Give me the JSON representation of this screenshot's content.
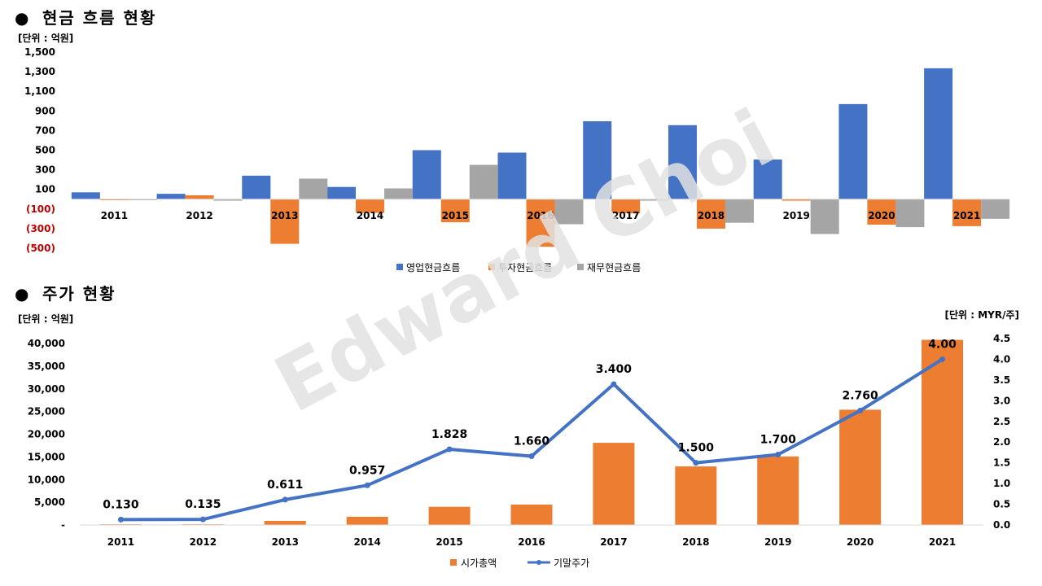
{
  "watermark": "Edward Choi",
  "colors": {
    "blue": "#4472C4",
    "orange": "#ED7D31",
    "gray": "#A5A5A5",
    "negative": "#C00000",
    "axis": "#D9D9D9",
    "watermark": "#E2E2E2"
  },
  "sections": {
    "cashflow": {
      "bullet": "●",
      "title": "현금 흐름 현황",
      "unit": "[단위 : 억원]"
    },
    "stock": {
      "bullet": "●",
      "title": "주가 현황",
      "unit_left": "[단위 : 억원]",
      "unit_right": "[단위 : MYR/주]"
    }
  },
  "chart_data": [
    {
      "type": "bar",
      "categories": [
        "2011",
        "2012",
        "2013",
        "2014",
        "2015",
        "2016",
        "2017",
        "2018",
        "2019",
        "2020",
        "2021"
      ],
      "ylim": [
        -500,
        1500
      ],
      "y_ticks": [
        1500,
        1300,
        1100,
        900,
        700,
        500,
        300,
        100,
        -100,
        -300,
        -500
      ],
      "y_tick_labels": [
        "1,500",
        "1,300",
        "1,100",
        "900",
        "700",
        "500",
        "300",
        "100",
        "(100)",
        "(300)",
        "(500)"
      ],
      "legend_position": "bottom",
      "grid": false,
      "series": [
        {
          "name": "영업현금흐름",
          "color": "#4472C4",
          "values": [
            70,
            55,
            240,
            125,
            500,
            475,
            795,
            755,
            405,
            970,
            1335
          ]
        },
        {
          "name": "투자현금흐름",
          "color": "#ED7D31",
          "values": [
            -10,
            40,
            -455,
            -140,
            -235,
            -485,
            -145,
            -300,
            -15,
            -260,
            -275
          ]
        },
        {
          "name": "재무현금흐름",
          "color": "#A5A5A5",
          "values": [
            -10,
            -15,
            210,
            110,
            350,
            -255,
            -15,
            -240,
            -355,
            -285,
            -200
          ]
        }
      ]
    },
    {
      "type": "bar+line",
      "categories": [
        "2011",
        "2012",
        "2013",
        "2014",
        "2015",
        "2016",
        "2017",
        "2018",
        "2019",
        "2020",
        "2021"
      ],
      "ylim_left": [
        0,
        40000
      ],
      "y_ticks_left": [
        40000,
        35000,
        30000,
        25000,
        20000,
        15000,
        10000,
        5000,
        0
      ],
      "y_tick_labels_left": [
        "40,000",
        "35,000",
        "30,000",
        "25,000",
        "20,000",
        "15,000",
        "10,000",
        "5,000",
        "-"
      ],
      "ylim_right": [
        0,
        4.5
      ],
      "y_ticks_right": [
        4.5,
        4.0,
        3.5,
        3.0,
        2.5,
        2.0,
        1.5,
        1.0,
        0.5,
        0.0
      ],
      "y_tick_labels_right": [
        "4.5",
        "4.0",
        "3.5",
        "3.0",
        "2.5",
        "2.0",
        "1.5",
        "1.0",
        "0.5",
        "0.0"
      ],
      "legend_position": "bottom",
      "grid": false,
      "bars": {
        "name": "시가총액",
        "color": "#ED7D31",
        "axis": "left",
        "values": [
          150,
          150,
          900,
          1800,
          4000,
          4500,
          18100,
          12900,
          15100,
          25400,
          40800
        ]
      },
      "line": {
        "name": "기말주가",
        "color": "#4472C4",
        "axis": "right",
        "values": [
          0.13,
          0.135,
          0.611,
          0.957,
          1.828,
          1.66,
          3.4,
          1.5,
          1.7,
          2.76,
          4.0
        ],
        "labels": [
          "0.130",
          "0.135",
          "0.611",
          "0.957",
          "1.828",
          "1.660",
          "3.400",
          "1.500",
          "1.700",
          "2.760",
          "4.00"
        ]
      }
    }
  ]
}
